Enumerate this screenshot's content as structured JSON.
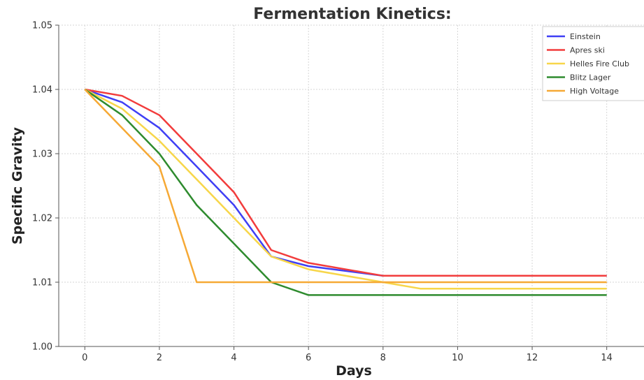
{
  "chart_data": {
    "type": "line",
    "title": "Fermentation Kinetics:",
    "xlabel": "Days",
    "ylabel": "Specific Gravity",
    "xlim": [
      -0.7,
      15
    ],
    "ylim": [
      1.0,
      1.05
    ],
    "x_ticks": [
      0,
      2,
      4,
      6,
      8,
      10,
      12,
      14
    ],
    "y_ticks": [
      "1.00",
      "1.01",
      "1.02",
      "1.03",
      "1.04",
      "1.05"
    ],
    "grid": true,
    "legend_position": "top-right",
    "series": [
      {
        "name": "Einstein",
        "color": "#3f3ff5",
        "points": [
          [
            0,
            1.04
          ],
          [
            1,
            1.038
          ],
          [
            2,
            1.034
          ],
          [
            3,
            1.028
          ],
          [
            4,
            1.022
          ],
          [
            5,
            1.014
          ],
          [
            6,
            1.0125
          ],
          [
            8,
            1.011
          ],
          [
            14,
            1.011
          ]
        ]
      },
      {
        "name": "Apres ski",
        "color": "#f23c3c",
        "points": [
          [
            0,
            1.04
          ],
          [
            1,
            1.039
          ],
          [
            2,
            1.036
          ],
          [
            3,
            1.03
          ],
          [
            4,
            1.024
          ],
          [
            5,
            1.015
          ],
          [
            6,
            1.013
          ],
          [
            8,
            1.011
          ],
          [
            14,
            1.011
          ]
        ]
      },
      {
        "name": "Helles Fire Club",
        "color": "#f7d64a",
        "points": [
          [
            0,
            1.04
          ],
          [
            1,
            1.037
          ],
          [
            2,
            1.032
          ],
          [
            3,
            1.026
          ],
          [
            4,
            1.02
          ],
          [
            5,
            1.014
          ],
          [
            6,
            1.012
          ],
          [
            8,
            1.01
          ],
          [
            9,
            1.009
          ],
          [
            14,
            1.009
          ]
        ]
      },
      {
        "name": "Blitz Lager",
        "color": "#2e8b2e",
        "points": [
          [
            0,
            1.04
          ],
          [
            1,
            1.036
          ],
          [
            2,
            1.03
          ],
          [
            3,
            1.022
          ],
          [
            4,
            1.016
          ],
          [
            5,
            1.01
          ],
          [
            6,
            1.008
          ],
          [
            14,
            1.008
          ]
        ]
      },
      {
        "name": "High Voltage",
        "color": "#f6a935",
        "points": [
          [
            0,
            1.04
          ],
          [
            1,
            1.034
          ],
          [
            2,
            1.028
          ],
          [
            3,
            1.01
          ],
          [
            14,
            1.01
          ]
        ]
      }
    ]
  }
}
